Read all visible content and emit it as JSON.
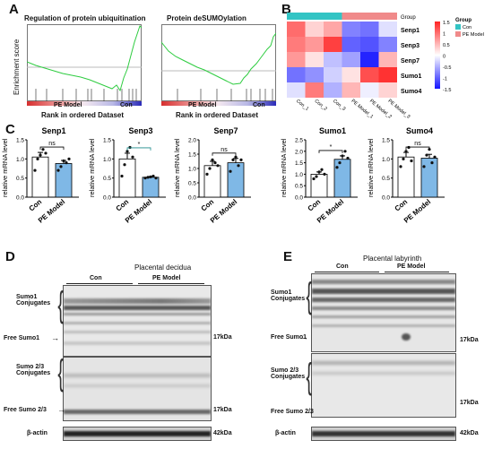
{
  "panel_labels": [
    "A",
    "B",
    "C",
    "D",
    "E"
  ],
  "panelA": {
    "plots": [
      {
        "title": "Regulation of protein ubiquitination",
        "left_label": "PE Model",
        "right_label": "Con"
      },
      {
        "title": "Protein deSUMOylation",
        "left_label": "PE Model",
        "right_label": "Con"
      }
    ],
    "ylabel": "Enrichment score",
    "xlabel": "Rank in ordered Dataset"
  },
  "panelB": {
    "genes": [
      "Senp1",
      "Senp3",
      "Senp7",
      "Sumo1",
      "Sumo4"
    ],
    "samples": [
      "Con_1",
      "Con_2",
      "Con_3",
      "PE Model_1",
      "PE Model_2",
      "PE Model_3"
    ],
    "group_title": "Group",
    "group_title_left": "Group",
    "legend_groups": [
      "Con",
      "PE Model"
    ],
    "group_colors": {
      "Con": "#33c4c4",
      "PE Model": "#f08a8a"
    },
    "scale_ticks": [
      "1.5",
      "1",
      "0.5",
      "0",
      "-0.5",
      "-1",
      "-1.5"
    ],
    "values": [
      [
        1.0,
        0.3,
        0.6,
        -0.8,
        -0.9,
        -0.2
      ],
      [
        0.9,
        0.7,
        1.3,
        -1.0,
        -1.1,
        -0.8
      ],
      [
        0.7,
        0.2,
        -0.4,
        -0.6,
        -1.4,
        0.5
      ],
      [
        -0.9,
        -0.7,
        -0.3,
        0.2,
        1.2,
        1.4
      ],
      [
        -0.2,
        0.9,
        -0.5,
        0.5,
        -0.1,
        0.3
      ]
    ]
  },
  "panelC": {
    "ylabel": "relative mRNA  level",
    "groups": [
      "Con",
      "PE Model"
    ],
    "plots": [
      {
        "title": "Senp1",
        "sig": "ns",
        "ymax": 1.5,
        "ticks": [
          "0.0",
          "0.5",
          "1.0",
          "1.5"
        ],
        "means": [
          1.05,
          0.88
        ],
        "errors": [
          0.12,
          0.08
        ],
        "points": [
          [
            0.7,
            1.0,
            1.1,
            1.25,
            1.15
          ],
          [
            0.7,
            0.8,
            0.95,
            0.9,
            1.0
          ]
        ]
      },
      {
        "title": "Senp3",
        "sig": "*",
        "ymax": 1.5,
        "ticks": [
          "0.0",
          "0.5",
          "1.0",
          "1.5"
        ],
        "means": [
          1.0,
          0.52
        ],
        "errors": [
          0.15,
          0.02
        ],
        "points": [
          [
            0.55,
            0.85,
            1.2,
            1.3,
            1.05
          ],
          [
            0.5,
            0.52,
            0.53,
            0.55,
            0.5
          ]
        ]
      },
      {
        "title": "Senp7",
        "sig": "ns",
        "ymax": 2.0,
        "ticks": [
          "0.0",
          "0.5",
          "1.0",
          "1.5",
          "2.0"
        ],
        "means": [
          1.1,
          1.2
        ],
        "errors": [
          0.15,
          0.15
        ],
        "points": [
          [
            0.8,
            1.0,
            1.3,
            1.2,
            1.1
          ],
          [
            0.9,
            1.3,
            1.4,
            1.1,
            1.3
          ]
        ]
      },
      {
        "title": "Sumo1",
        "sig": "*",
        "ymax": 2.5,
        "ticks": [
          "0.0",
          "0.5",
          "1.0",
          "1.5",
          "2.0",
          "2.5"
        ],
        "means": [
          1.0,
          1.65
        ],
        "errors": [
          0.1,
          0.15
        ],
        "points": [
          [
            0.8,
            0.9,
            1.1,
            1.2,
            1.0
          ],
          [
            1.3,
            1.5,
            1.8,
            2.0,
            1.7
          ]
        ]
      },
      {
        "title": "Sumo4",
        "sig": "ns",
        "ymax": 1.5,
        "ticks": [
          "0.0",
          "0.5",
          "1.0",
          "1.5"
        ],
        "means": [
          1.05,
          1.02
        ],
        "errors": [
          0.12,
          0.1
        ],
        "points": [
          [
            0.8,
            1.0,
            1.2,
            1.3,
            0.95
          ],
          [
            0.8,
            1.1,
            1.25,
            0.9,
            1.05
          ]
        ]
      }
    ]
  },
  "panelD": {
    "title": "Placental decidua",
    "group1": "Con",
    "group2": "PE Model",
    "labels": {
      "sumo1_conj": "Sumo1\nConjugates",
      "free_sumo1": "Free Sumo1",
      "sumo23_conj": "Sumo 2/3\nConjugates",
      "free_sumo23": "Free Sumo 2/3",
      "actin": "β-actin"
    },
    "kda": {
      "sumo1": "17kDa",
      "sumo23": "17kDa",
      "actin": "42kDa"
    }
  },
  "panelE": {
    "title": "Placental labyrinth",
    "group1": "Con",
    "group2": "PE Model",
    "labels": {
      "sumo1_conj": "Sumo1\nConjugates",
      "free_sumo1": "Free Sumo1",
      "sumo23_conj": "Sumo 2/3\nConjugates",
      "free_sumo23": "Free Sumo 2/3",
      "actin": "β-actin"
    },
    "kda": {
      "sumo1": "17kDa",
      "sumo23": "17kDa",
      "actin": "42kDa"
    }
  }
}
